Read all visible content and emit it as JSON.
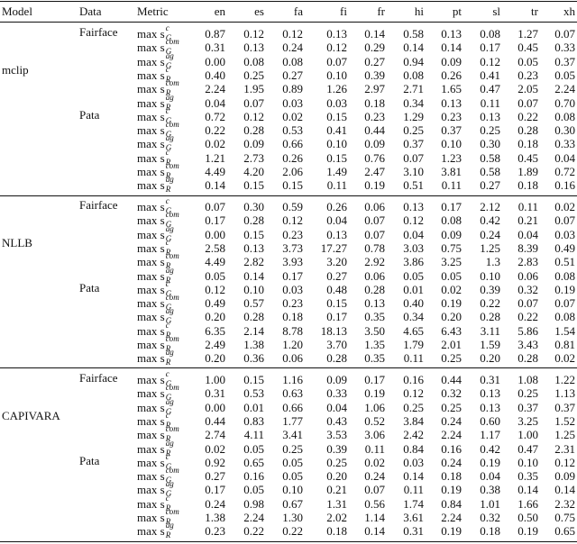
{
  "header": [
    "Model",
    "Data",
    "Metric",
    "en",
    "es",
    "fa",
    "fi",
    "fr",
    "hi",
    "pt",
    "sl",
    "tr",
    "xh"
  ],
  "groups": [
    {
      "model": "mclip",
      "datasets": [
        {
          "name": "Fairface",
          "rows": [
            {
              "metric": {
                "base": "max s",
                "sub": "G",
                "sup": "c"
              },
              "values": [
                "0.87",
                "0.12",
                "0.12",
                "0.13",
                "0.14",
                "0.58",
                "0.13",
                "0.08",
                "1.27",
                "0.07"
              ]
            },
            {
              "metric": {
                "base": "max s",
                "sub": "G",
                "sup": "com"
              },
              "values": [
                "0.31",
                "0.13",
                "0.24",
                "0.12",
                "0.29",
                "0.14",
                "0.14",
                "0.17",
                "0.45",
                "0.33"
              ]
            },
            {
              "metric": {
                "base": "max s",
                "sub": "G",
                "sup": "ag"
              },
              "values": [
                "0.00",
                "0.08",
                "0.08",
                "0.07",
                "0.27",
                "0.94",
                "0.09",
                "0.12",
                "0.05",
                "0.37"
              ]
            },
            {
              "metric": {
                "base": "max s",
                "sub": "R",
                "sup": "c"
              },
              "values": [
                "0.40",
                "0.25",
                "0.27",
                "0.10",
                "0.39",
                "0.08",
                "0.26",
                "0.41",
                "0.23",
                "0.05"
              ]
            },
            {
              "metric": {
                "base": "max s",
                "sub": "R",
                "sup": "com"
              },
              "values": [
                "2.24",
                "1.95",
                "0.89",
                "1.26",
                "2.97",
                "2.71",
                "1.65",
                "0.47",
                "2.05",
                "2.24"
              ]
            },
            {
              "metric": {
                "base": "max s",
                "sub": "R",
                "sup": "ag"
              },
              "values": [
                "0.04",
                "0.07",
                "0.03",
                "0.03",
                "0.18",
                "0.34",
                "0.13",
                "0.11",
                "0.07",
                "0.70"
              ]
            }
          ]
        },
        {
          "name": "Pata",
          "rows": [
            {
              "metric": {
                "base": "max s",
                "sub": "G",
                "sup": "c"
              },
              "values": [
                "0.72",
                "0.12",
                "0.02",
                "0.15",
                "0.23",
                "1.29",
                "0.23",
                "0.13",
                "0.22",
                "0.08"
              ]
            },
            {
              "metric": {
                "base": "max s",
                "sub": "G",
                "sup": "com"
              },
              "values": [
                "0.22",
                "0.28",
                "0.53",
                "0.41",
                "0.44",
                "0.25",
                "0.37",
                "0.25",
                "0.28",
                "0.30"
              ]
            },
            {
              "metric": {
                "base": "max s",
                "sub": "G",
                "sup": "ag"
              },
              "values": [
                "0.02",
                "0.09",
                "0.66",
                "0.10",
                "0.09",
                "0.37",
                "0.10",
                "0.30",
                "0.18",
                "0.33"
              ]
            },
            {
              "metric": {
                "base": "max s",
                "sub": "R",
                "sup": "c"
              },
              "values": [
                "1.21",
                "2.73",
                "0.26",
                "0.15",
                "0.76",
                "0.07",
                "1.23",
                "0.58",
                "0.45",
                "0.04"
              ]
            },
            {
              "metric": {
                "base": "max s",
                "sub": "R",
                "sup": "com"
              },
              "values": [
                "4.49",
                "4.20",
                "2.06",
                "1.49",
                "2.47",
                "3.10",
                "3.81",
                "0.58",
                "1.89",
                "0.72"
              ]
            },
            {
              "metric": {
                "base": "max s",
                "sub": "R",
                "sup": "ag"
              },
              "values": [
                "0.14",
                "0.15",
                "0.15",
                "0.11",
                "0.19",
                "0.51",
                "0.11",
                "0.27",
                "0.18",
                "0.16"
              ]
            }
          ]
        }
      ]
    },
    {
      "model": "NLLB",
      "datasets": [
        {
          "name": "Fairface",
          "rows": [
            {
              "metric": {
                "base": "max s",
                "sub": "G",
                "sup": "c"
              },
              "values": [
                "0.07",
                "0.30",
                "0.59",
                "0.26",
                "0.06",
                "0.13",
                "0.17",
                "2.12",
                "0.11",
                "0.02"
              ]
            },
            {
              "metric": {
                "base": "max s",
                "sub": "G",
                "sup": "com"
              },
              "values": [
                "0.17",
                "0.28",
                "0.12",
                "0.04",
                "0.07",
                "0.12",
                "0.08",
                "0.42",
                "0.21",
                "0.07"
              ]
            },
            {
              "metric": {
                "base": "max s",
                "sub": "G",
                "sup": "ag"
              },
              "values": [
                "0.00",
                "0.15",
                "0.23",
                "0.13",
                "0.07",
                "0.04",
                "0.09",
                "0.24",
                "0.04",
                "0.03"
              ]
            },
            {
              "metric": {
                "base": "max s",
                "sub": "R",
                "sup": "c"
              },
              "values": [
                "2.58",
                "0.13",
                "3.73",
                "17.27",
                "0.78",
                "3.03",
                "0.75",
                "1.25",
                "8.39",
                "0.49"
              ]
            },
            {
              "metric": {
                "base": "max s",
                "sub": "R",
                "sup": "com"
              },
              "values": [
                "4.49",
                "2.82",
                "3.93",
                "3.20",
                "2.92",
                "3.86",
                "3.25",
                "1.3",
                "2.83",
                "0.51"
              ]
            },
            {
              "metric": {
                "base": "max s",
                "sub": "R",
                "sup": "ag"
              },
              "values": [
                "0.05",
                "0.14",
                "0.17",
                "0.27",
                "0.06",
                "0.05",
                "0.05",
                "0.10",
                "0.06",
                "0.08"
              ]
            }
          ]
        },
        {
          "name": "Pata",
          "rows": [
            {
              "metric": {
                "base": "max s",
                "sub": "G",
                "sup": "c"
              },
              "values": [
                "0.12",
                "0.10",
                "0.03",
                "0.48",
                "0.28",
                "0.01",
                "0.02",
                "0.39",
                "0.32",
                "0.19"
              ]
            },
            {
              "metric": {
                "base": "max s",
                "sub": "G",
                "sup": "com"
              },
              "values": [
                "0.49",
                "0.57",
                "0.23",
                "0.15",
                "0.13",
                "0.40",
                "0.19",
                "0.22",
                "0.07",
                "0.07"
              ]
            },
            {
              "metric": {
                "base": "max s",
                "sub": "G",
                "sup": "ag"
              },
              "values": [
                "0.20",
                "0.28",
                "0.18",
                "0.17",
                "0.35",
                "0.34",
                "0.20",
                "0.28",
                "0.22",
                "0.08"
              ]
            },
            {
              "metric": {
                "base": "max s",
                "sub": "R",
                "sup": "c"
              },
              "values": [
                "6.35",
                "2.14",
                "8.78",
                "18.13",
                "3.50",
                "4.65",
                "6.43",
                "3.11",
                "5.86",
                "1.54"
              ]
            },
            {
              "metric": {
                "base": "max s",
                "sub": "R",
                "sup": "com"
              },
              "values": [
                "2.49",
                "1.38",
                "1.20",
                "3.70",
                "1.35",
                "1.79",
                "2.01",
                "1.59",
                "3.43",
                "0.81"
              ]
            },
            {
              "metric": {
                "base": "max s",
                "sub": "R",
                "sup": "ag"
              },
              "values": [
                "0.20",
                "0.36",
                "0.06",
                "0.28",
                "0.35",
                "0.11",
                "0.25",
                "0.20",
                "0.28",
                "0.02"
              ]
            }
          ]
        }
      ]
    },
    {
      "model": "CAPIVARA",
      "datasets": [
        {
          "name": "Fairface",
          "rows": [
            {
              "metric": {
                "base": "max s",
                "sub": "G",
                "sup": "c"
              },
              "values": [
                "1.00",
                "0.15",
                "1.16",
                "0.09",
                "0.17",
                "0.16",
                "0.44",
                "0.31",
                "1.08",
                "1.22"
              ]
            },
            {
              "metric": {
                "base": "max s",
                "sub": "G",
                "sup": "com"
              },
              "values": [
                "0.31",
                "0.53",
                "0.63",
                "0.33",
                "0.19",
                "0.12",
                "0.32",
                "0.13",
                "0.25",
                "1.13"
              ]
            },
            {
              "metric": {
                "base": "max s",
                "sub": "G",
                "sup": "ag"
              },
              "values": [
                "0.00",
                "0.01",
                "0.66",
                "0.04",
                "1.06",
                "0.25",
                "0.25",
                "0.13",
                "0.37",
                "0.37"
              ]
            },
            {
              "metric": {
                "base": "max s",
                "sub": "R",
                "sup": "c"
              },
              "values": [
                "0.44",
                "0.83",
                "1.77",
                "0.43",
                "0.52",
                "3.84",
                "0.24",
                "0.60",
                "3.25",
                "1.52"
              ]
            },
            {
              "metric": {
                "base": "max s",
                "sub": "R",
                "sup": "com"
              },
              "values": [
                "2.74",
                "4.11",
                "3.41",
                "3.53",
                "3.06",
                "2.42",
                "2.24",
                "1.17",
                "1.00",
                "1.25"
              ]
            },
            {
              "metric": {
                "base": "max s",
                "sub": "R",
                "sup": "ag"
              },
              "values": [
                "0.02",
                "0.05",
                "0.25",
                "0.39",
                "0.11",
                "0.84",
                "0.16",
                "0.42",
                "0.47",
                "2.31"
              ]
            }
          ]
        },
        {
          "name": "Pata",
          "rows": [
            {
              "metric": {
                "base": "max s",
                "sub": "G",
                "sup": "c"
              },
              "values": [
                "0.92",
                "0.65",
                "0.05",
                "0.25",
                "0.02",
                "0.03",
                "0.24",
                "0.19",
                "0.10",
                "0.12"
              ]
            },
            {
              "metric": {
                "base": "max s",
                "sub": "G",
                "sup": "com"
              },
              "values": [
                "0.27",
                "0.16",
                "0.05",
                "0.20",
                "0.24",
                "0.14",
                "0.18",
                "0.04",
                "0.35",
                "0.09"
              ]
            },
            {
              "metric": {
                "base": "max s",
                "sub": "G",
                "sup": "ag"
              },
              "values": [
                "0.17",
                "0.05",
                "0.10",
                "0.21",
                "0.07",
                "0.11",
                "0.19",
                "0.38",
                "0.14",
                "0.14"
              ]
            },
            {
              "metric": {
                "base": "max s",
                "sub": "R",
                "sup": "c"
              },
              "values": [
                "0.24",
                "0.98",
                "0.67",
                "1.31",
                "0.56",
                "1.74",
                "0.84",
                "1.01",
                "1.66",
                "2.32"
              ]
            },
            {
              "metric": {
                "base": "max s",
                "sub": "R",
                "sup": "com"
              },
              "values": [
                "1.38",
                "2.24",
                "1.30",
                "2.02",
                "1.14",
                "3.61",
                "2.24",
                "0.32",
                "0.50",
                "0.75"
              ]
            },
            {
              "metric": {
                "base": "max s",
                "sub": "R",
                "sup": "ag"
              },
              "values": [
                "0.23",
                "0.22",
                "0.22",
                "0.18",
                "0.14",
                "0.31",
                "0.19",
                "0.18",
                "0.19",
                "0.65"
              ]
            }
          ]
        }
      ]
    }
  ]
}
